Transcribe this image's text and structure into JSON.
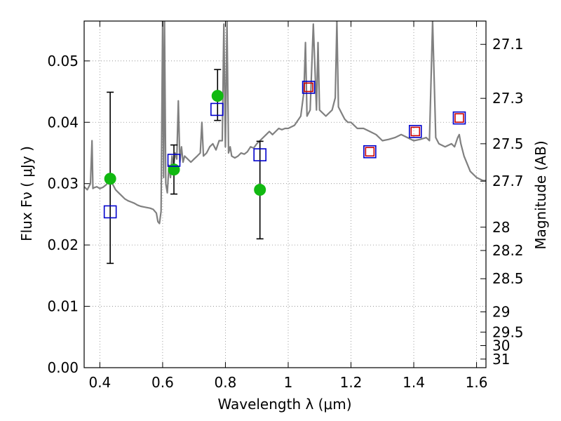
{
  "chart_data": {
    "type": "scatter",
    "xlabel": "Wavelength  λ (μm)",
    "ylabel_left": "Flux  Fν  ( μJy )",
    "ylabel_right": "Magnitude (AB)",
    "xlim": [
      0.35,
      1.63
    ],
    "ylim": [
      0.0,
      0.0565
    ],
    "grid": true,
    "x_ticks": [
      0.4,
      0.6,
      0.8,
      1.0,
      1.2,
      1.4,
      1.6
    ],
    "x_tick_labels": [
      "0.4",
      "0.6",
      "0.8",
      "1",
      "1.2",
      "1.4",
      "1.6"
    ],
    "y_ticks": [
      0.0,
      0.01,
      0.02,
      0.03,
      0.04,
      0.05
    ],
    "y_tick_labels": [
      "0.00",
      "0.01",
      "0.02",
      "0.03",
      "0.04",
      "0.05"
    ],
    "right_ticks": [
      {
        "label": "27.1",
        "flux": 0.0527
      },
      {
        "label": "27.3",
        "flux": 0.0439
      },
      {
        "label": "27.5",
        "flux": 0.0365
      },
      {
        "label": "27.7",
        "flux": 0.0304
      },
      {
        "label": "28",
        "flux": 0.0229
      },
      {
        "label": "28.2",
        "flux": 0.0191
      },
      {
        "label": "28.5",
        "flux": 0.0145
      },
      {
        "label": "29",
        "flux": 0.0091
      },
      {
        "label": "29.5",
        "flux": 0.0058
      },
      {
        "label": "30",
        "flux": 0.0036
      },
      {
        "label": "31",
        "flux": 0.0014
      }
    ],
    "series": [
      {
        "kind": "line",
        "color": "#808080",
        "x": [
          0.35,
          0.36,
          0.37,
          0.375,
          0.378,
          0.38,
          0.39,
          0.4,
          0.41,
          0.42,
          0.43,
          0.44,
          0.45,
          0.46,
          0.47,
          0.48,
          0.49,
          0.5,
          0.51,
          0.52,
          0.53,
          0.54,
          0.55,
          0.56,
          0.57,
          0.58,
          0.585,
          0.59,
          0.595,
          0.6,
          0.603,
          0.606,
          0.61,
          0.615,
          0.62,
          0.625,
          0.63,
          0.635,
          0.64,
          0.645,
          0.65,
          0.655,
          0.66,
          0.665,
          0.67,
          0.68,
          0.69,
          0.7,
          0.71,
          0.72,
          0.725,
          0.73,
          0.74,
          0.75,
          0.76,
          0.77,
          0.78,
          0.79,
          0.795,
          0.8,
          0.805,
          0.81,
          0.815,
          0.82,
          0.83,
          0.84,
          0.85,
          0.86,
          0.87,
          0.88,
          0.89,
          0.9,
          0.91,
          0.92,
          0.93,
          0.94,
          0.95,
          0.96,
          0.97,
          0.98,
          0.99,
          1.0,
          1.02,
          1.04,
          1.05,
          1.055,
          1.06,
          1.07,
          1.08,
          1.09,
          1.095,
          1.1,
          1.12,
          1.14,
          1.15,
          1.155,
          1.16,
          1.17,
          1.18,
          1.19,
          1.2,
          1.22,
          1.24,
          1.26,
          1.28,
          1.3,
          1.32,
          1.34,
          1.36,
          1.38,
          1.4,
          1.42,
          1.44,
          1.45,
          1.46,
          1.47,
          1.48,
          1.5,
          1.52,
          1.53,
          1.54,
          1.545,
          1.55,
          1.56,
          1.58,
          1.6,
          1.62,
          1.63
        ],
        "y": [
          0.0295,
          0.029,
          0.03,
          0.037,
          0.0292,
          0.0293,
          0.0295,
          0.0292,
          0.0294,
          0.0298,
          0.0305,
          0.03,
          0.029,
          0.0285,
          0.028,
          0.0275,
          0.0272,
          0.027,
          0.0268,
          0.0265,
          0.0263,
          0.0262,
          0.0261,
          0.026,
          0.0258,
          0.0252,
          0.0238,
          0.0235,
          0.0255,
          0.0565,
          0.031,
          0.0565,
          0.03,
          0.0285,
          0.033,
          0.031,
          0.0345,
          0.033,
          0.035,
          0.034,
          0.0435,
          0.0335,
          0.036,
          0.0335,
          0.0345,
          0.034,
          0.0335,
          0.034,
          0.0345,
          0.035,
          0.04,
          0.0345,
          0.035,
          0.036,
          0.0365,
          0.0355,
          0.037,
          0.037,
          0.056,
          0.036,
          0.0565,
          0.035,
          0.036,
          0.0345,
          0.0342,
          0.0345,
          0.035,
          0.0348,
          0.0352,
          0.036,
          0.0358,
          0.0365,
          0.037,
          0.0375,
          0.038,
          0.0385,
          0.038,
          0.0385,
          0.039,
          0.0388,
          0.039,
          0.039,
          0.0395,
          0.041,
          0.045,
          0.053,
          0.041,
          0.042,
          0.056,
          0.042,
          0.053,
          0.042,
          0.041,
          0.042,
          0.044,
          0.0565,
          0.0425,
          0.0415,
          0.0405,
          0.04,
          0.04,
          0.039,
          0.039,
          0.0385,
          0.038,
          0.037,
          0.0372,
          0.0375,
          0.038,
          0.0375,
          0.037,
          0.0372,
          0.0375,
          0.037,
          0.0565,
          0.0375,
          0.0365,
          0.036,
          0.0365,
          0.036,
          0.0375,
          0.038,
          0.0365,
          0.0345,
          0.032,
          0.031,
          0.0305,
          0.0305
        ]
      },
      {
        "kind": "errorbars",
        "color": "#000000",
        "points": [
          {
            "x": 0.433,
            "low": 0.017,
            "high": 0.0449
          },
          {
            "x": 0.636,
            "low": 0.0283,
            "high": 0.0363
          },
          {
            "x": 0.775,
            "low": 0.0403,
            "high": 0.0486
          },
          {
            "x": 0.91,
            "low": 0.021,
            "high": 0.0369
          }
        ]
      },
      {
        "kind": "markers",
        "marker": "circle",
        "color": "#11b911",
        "x": [
          0.433,
          0.636,
          0.775,
          0.91
        ],
        "y": [
          0.0308,
          0.0323,
          0.0443,
          0.029
        ]
      },
      {
        "kind": "markers",
        "marker": "square",
        "color": "#0000cc",
        "x": [
          0.433,
          0.636,
          0.773,
          0.91,
          1.065,
          1.26,
          1.405,
          1.545
        ],
        "y": [
          0.0254,
          0.0338,
          0.0421,
          0.0347,
          0.0457,
          0.0352,
          0.0385,
          0.0407
        ]
      },
      {
        "kind": "markers",
        "marker": "square",
        "color": "#cc0000",
        "x": [
          1.065,
          1.26,
          1.405,
          1.545
        ],
        "y": [
          0.0457,
          0.0352,
          0.0385,
          0.0407
        ]
      }
    ]
  }
}
